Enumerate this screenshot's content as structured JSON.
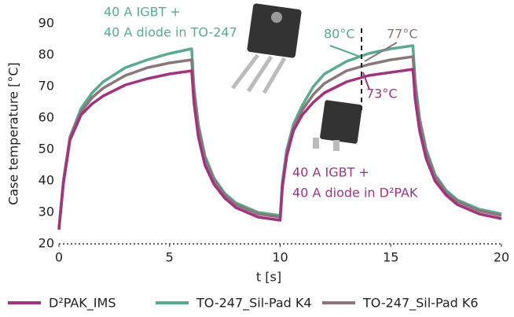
{
  "chart_data": {
    "type": "line",
    "x_label": "t [s]",
    "y_label": "Case temperature [°C]",
    "x": [
      0,
      0.2,
      0.5,
      1,
      1.5,
      2,
      3,
      4,
      5,
      6,
      6.1,
      6.3,
      6.6,
      7,
      7.5,
      8,
      9,
      10,
      10.1,
      10.3,
      10.6,
      11,
      11.5,
      12,
      13,
      14,
      15,
      16,
      16.1,
      16.3,
      16.6,
      17,
      17.5,
      18,
      19,
      20
    ],
    "series": [
      {
        "name": "D²PAK_IMS",
        "color": "#a0357f",
        "values": [
          24.5,
          39,
          53,
          61,
          64.5,
          67,
          70.5,
          72.5,
          74,
          75,
          65,
          54,
          45,
          39,
          34.5,
          31.5,
          28.5,
          27.5,
          38,
          48,
          56,
          61,
          65,
          68,
          71.5,
          73.5,
          74.5,
          75.5,
          66,
          56,
          47,
          40,
          35.5,
          32.5,
          29.5,
          28
        ]
      },
      {
        "name": "TO-247_Sil-Pad K4",
        "color": "#5aaa91",
        "values": [
          25,
          40,
          54,
          63,
          68,
          71.5,
          76,
          78.5,
          80.5,
          82,
          70,
          58,
          48,
          41,
          36,
          33,
          30,
          29,
          40,
          50,
          58,
          64,
          70,
          74,
          78,
          80.5,
          82,
          83,
          72,
          60,
          50,
          42,
          37,
          34,
          31,
          29.5
        ]
      },
      {
        "name": "TO-247_Sil-Pad K6",
        "color": "#8a7878",
        "values": [
          25,
          40,
          54,
          62,
          66.5,
          69.5,
          73.5,
          76,
          77.5,
          78.5,
          68,
          57,
          47,
          40.5,
          35.5,
          32.5,
          29.5,
          28.5,
          39,
          49,
          57,
          62.5,
          67.5,
          71,
          75,
          77,
          78.5,
          79.5,
          70,
          59,
          49,
          41.5,
          36.5,
          33.5,
          30.5,
          29
        ]
      }
    ],
    "xlim": [
      0,
      20
    ],
    "xticks": [
      0,
      5,
      10,
      15,
      20
    ],
    "ylim": [
      20,
      90
    ],
    "yticks": [
      20,
      30,
      40,
      50,
      60,
      70,
      80,
      90
    ],
    "annotations": [
      "40 A IGBT +",
      "40 A diode in TO-247",
      "80°C",
      "77°C",
      "73°C",
      "40 A IGBT +",
      "40 A diode in D²PAK"
    ]
  }
}
